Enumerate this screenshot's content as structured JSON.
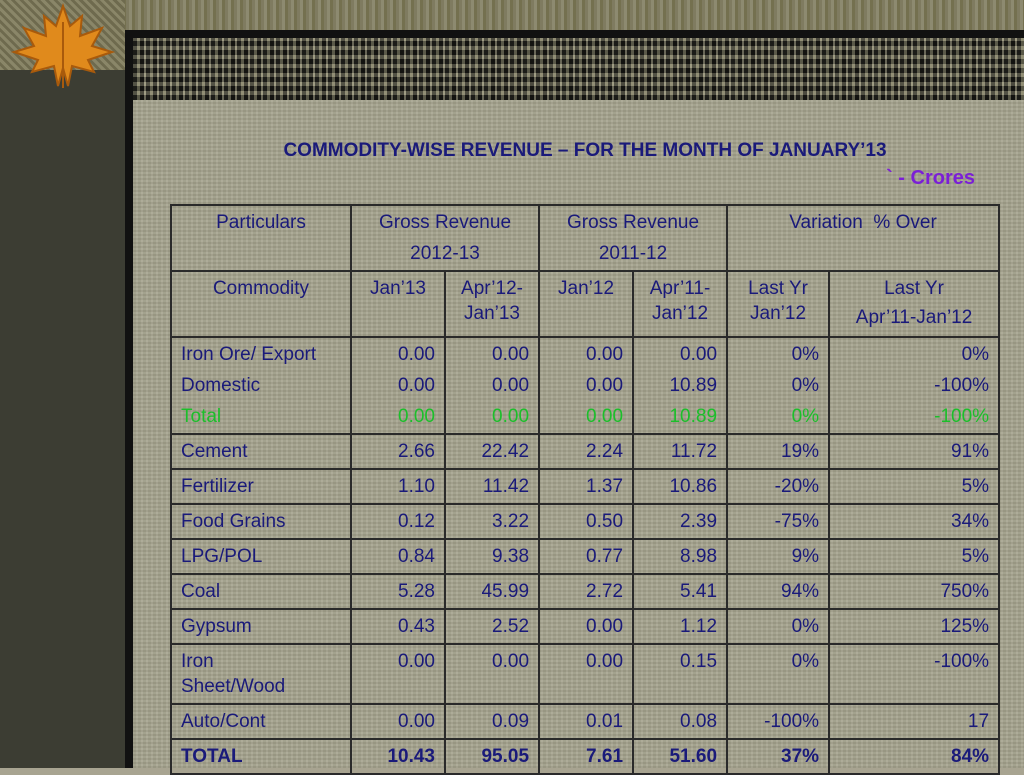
{
  "title": "COMMODITY-WISE REVENUE – FOR THE MONTH OF JANUARY’13",
  "unit_symbol": "`",
  "unit_label": "- Crores",
  "header": {
    "particulars": "Particulars",
    "gross_2012_line1": "Gross Revenue",
    "gross_2012_line2": "2012-13",
    "gross_2011_line1": "Gross Revenue",
    "gross_2011_line2": "2011-12",
    "variation": "Variation  % Over",
    "commodity": "Commodity",
    "jan13": "Jan’13",
    "apr12_jan13_l1": "Apr’12-",
    "apr12_jan13_l2": "Jan’13",
    "jan12": "Jan’12",
    "apr11_jan12_l1": "Apr’11-",
    "apr11_jan12_l2": "Jan’12",
    "lastyr_jan12_l1": "Last Yr",
    "lastyr_jan12_l2": "Jan’12",
    "lastyr_apr_l1": "Last Yr",
    "lastyr_apr_l2": "Apr’11-Jan’12"
  },
  "iron_group": [
    {
      "name": "Iron Ore/ Export",
      "c1": "0.00",
      "c2": "0.00",
      "c3": "0.00",
      "c4": "0.00",
      "c5": "0%",
      "c6": "0%"
    },
    {
      "name": "Domestic",
      "c1": "0.00",
      "c2": "0.00",
      "c3": "0.00",
      "c4": "10.89",
      "c5": "0%",
      "c6": "-100%"
    },
    {
      "name": "Total",
      "c1": "0.00",
      "c2": "0.00",
      "c3": "0.00",
      "c4": "10.89",
      "c5": "0%",
      "c6": "-100%"
    }
  ],
  "rows": [
    {
      "name": "Cement",
      "c1": "2.66",
      "c2": "22.42",
      "c3": "2.24",
      "c4": "11.72",
      "c5": "19%",
      "c6": "91%"
    },
    {
      "name": "Fertilizer",
      "c1": "1.10",
      "c2": "11.42",
      "c3": "1.37",
      "c4": "10.86",
      "c5": "-20%",
      "c6": "5%"
    },
    {
      "name": "Food Grains",
      "c1": "0.12",
      "c2": "3.22",
      "c3": "0.50",
      "c4": "2.39",
      "c5": "-75%",
      "c6": "34%"
    },
    {
      "name": "LPG/POL",
      "c1": "0.84",
      "c2": "9.38",
      "c3": "0.77",
      "c4": "8.98",
      "c5": "9%",
      "c6": "5%"
    },
    {
      "name": "Coal",
      "c1": "5.28",
      "c2": "45.99",
      "c3": "2.72",
      "c4": "5.41",
      "c5": "94%",
      "c6": "750%"
    },
    {
      "name": "Gypsum",
      "c1": "0.43",
      "c2": "2.52",
      "c3": "0.00",
      "c4": "1.12",
      "c5": "0%",
      "c6": "125%"
    },
    {
      "name_l1": "Iron",
      "name_l2": "Sheet/Wood",
      "c1": "0.00",
      "c2": "0.00",
      "c3": "0.00",
      "c4": "0.15",
      "c5": "0%",
      "c6": "-100%"
    },
    {
      "name": "Auto/Cont",
      "c1": "0.00",
      "c2": "0.09",
      "c3": "0.01",
      "c4": "0.08",
      "c5": "-100%",
      "c6": "17"
    },
    {
      "name": "TOTAL",
      "c1": "10.43",
      "c2": "95.05",
      "c3": "7.61",
      "c4": "51.60",
      "c5": "37%",
      "c6": "84%"
    }
  ]
}
